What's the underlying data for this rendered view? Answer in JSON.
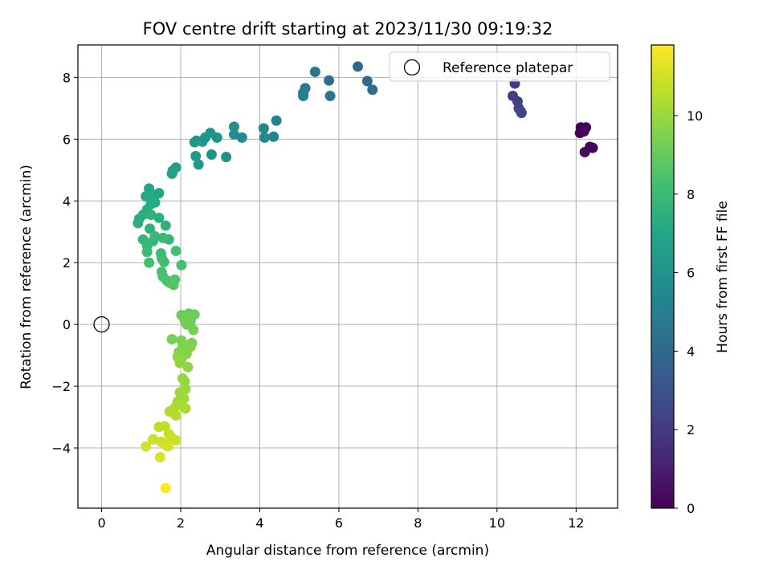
{
  "chart_data": {
    "type": "scatter",
    "title": "FOV centre drift starting at 2023/11/30 09:19:32",
    "xlabel": "Angular distance from reference (arcmin)",
    "ylabel": "Rotation from reference (arcmin)",
    "xlim": [
      -0.6,
      13.05
    ],
    "ylim": [
      -5.95,
      9.05
    ],
    "xticks": [
      0,
      2,
      4,
      6,
      8,
      10,
      12
    ],
    "yticks": [
      -4,
      -2,
      0,
      2,
      4,
      6,
      8
    ],
    "grid": true,
    "legend": {
      "position": "top-right",
      "entries": [
        "Reference platepar"
      ]
    },
    "colorbar": {
      "label": "Hours from first FF file",
      "range": [
        0,
        11.8
      ],
      "ticks": [
        0,
        2,
        4,
        6,
        8,
        10
      ],
      "colormap": "viridis"
    },
    "reference_point": {
      "x": 0,
      "y": 0,
      "label": "Reference platepar"
    },
    "points": [
      {
        "x": 12.12,
        "y": 6.38,
        "c": 0.0
      },
      {
        "x": 12.25,
        "y": 6.38,
        "c": 0.05
      },
      {
        "x": 12.1,
        "y": 6.2,
        "c": 0.1
      },
      {
        "x": 12.2,
        "y": 6.25,
        "c": 0.15
      },
      {
        "x": 12.35,
        "y": 5.75,
        "c": 0.2
      },
      {
        "x": 12.42,
        "y": 5.72,
        "c": 0.25
      },
      {
        "x": 12.22,
        "y": 5.58,
        "c": 0.3
      },
      {
        "x": 10.45,
        "y": 7.8,
        "c": 2.0
      },
      {
        "x": 10.4,
        "y": 7.4,
        "c": 2.1
      },
      {
        "x": 10.52,
        "y": 7.22,
        "c": 2.2
      },
      {
        "x": 10.55,
        "y": 7.0,
        "c": 2.3
      },
      {
        "x": 10.6,
        "y": 6.9,
        "c": 2.4
      },
      {
        "x": 10.62,
        "y": 6.85,
        "c": 2.5
      },
      {
        "x": 6.48,
        "y": 8.35,
        "c": 4.0
      },
      {
        "x": 6.72,
        "y": 7.88,
        "c": 4.1
      },
      {
        "x": 6.85,
        "y": 7.6,
        "c": 4.2
      },
      {
        "x": 5.75,
        "y": 7.9,
        "c": 4.4
      },
      {
        "x": 5.78,
        "y": 7.4,
        "c": 4.5
      },
      {
        "x": 5.4,
        "y": 8.18,
        "c": 4.6
      },
      {
        "x": 5.15,
        "y": 7.65,
        "c": 4.8
      },
      {
        "x": 5.1,
        "y": 7.4,
        "c": 4.9
      },
      {
        "x": 5.1,
        "y": 7.5,
        "c": 5.0
      },
      {
        "x": 4.42,
        "y": 6.6,
        "c": 5.2
      },
      {
        "x": 4.35,
        "y": 6.08,
        "c": 5.3
      },
      {
        "x": 4.1,
        "y": 6.35,
        "c": 5.4
      },
      {
        "x": 4.12,
        "y": 6.05,
        "c": 5.5
      },
      {
        "x": 3.55,
        "y": 6.05,
        "c": 5.6
      },
      {
        "x": 3.35,
        "y": 6.4,
        "c": 5.7
      },
      {
        "x": 3.35,
        "y": 6.15,
        "c": 5.8
      },
      {
        "x": 3.15,
        "y": 5.42,
        "c": 5.9
      },
      {
        "x": 2.92,
        "y": 6.05,
        "c": 6.0
      },
      {
        "x": 2.75,
        "y": 6.2,
        "c": 6.05
      },
      {
        "x": 2.78,
        "y": 5.5,
        "c": 6.1
      },
      {
        "x": 2.62,
        "y": 6.05,
        "c": 6.15
      },
      {
        "x": 2.55,
        "y": 5.92,
        "c": 6.2
      },
      {
        "x": 2.4,
        "y": 5.95,
        "c": 6.25
      },
      {
        "x": 2.35,
        "y": 5.9,
        "c": 6.3
      },
      {
        "x": 2.38,
        "y": 5.45,
        "c": 6.35
      },
      {
        "x": 2.45,
        "y": 5.18,
        "c": 6.4
      },
      {
        "x": 1.88,
        "y": 5.08,
        "c": 6.6
      },
      {
        "x": 1.8,
        "y": 4.98,
        "c": 6.65
      },
      {
        "x": 1.78,
        "y": 4.88,
        "c": 6.7
      },
      {
        "x": 1.2,
        "y": 4.4,
        "c": 7.0
      },
      {
        "x": 1.45,
        "y": 4.25,
        "c": 7.05
      },
      {
        "x": 1.12,
        "y": 4.15,
        "c": 7.1
      },
      {
        "x": 1.3,
        "y": 4.2,
        "c": 7.15
      },
      {
        "x": 1.35,
        "y": 3.95,
        "c": 7.2
      },
      {
        "x": 1.25,
        "y": 3.9,
        "c": 7.25
      },
      {
        "x": 1.15,
        "y": 3.72,
        "c": 7.3
      },
      {
        "x": 1.05,
        "y": 3.55,
        "c": 7.35
      },
      {
        "x": 0.95,
        "y": 3.42,
        "c": 7.4
      },
      {
        "x": 0.92,
        "y": 3.28,
        "c": 7.45
      },
      {
        "x": 1.45,
        "y": 3.45,
        "c": 7.5
      },
      {
        "x": 1.25,
        "y": 3.55,
        "c": 7.55
      },
      {
        "x": 1.62,
        "y": 3.2,
        "c": 7.6
      },
      {
        "x": 1.22,
        "y": 3.1,
        "c": 7.65
      },
      {
        "x": 1.7,
        "y": 2.75,
        "c": 7.7
      },
      {
        "x": 1.3,
        "y": 2.7,
        "c": 7.75
      },
      {
        "x": 1.05,
        "y": 2.75,
        "c": 7.8
      },
      {
        "x": 1.15,
        "y": 2.55,
        "c": 7.85
      },
      {
        "x": 1.35,
        "y": 2.85,
        "c": 7.9
      },
      {
        "x": 1.55,
        "y": 2.8,
        "c": 7.95
      },
      {
        "x": 1.15,
        "y": 2.35,
        "c": 8.0
      },
      {
        "x": 1.5,
        "y": 2.3,
        "c": 8.05
      },
      {
        "x": 1.52,
        "y": 2.15,
        "c": 8.1
      },
      {
        "x": 1.58,
        "y": 2.02,
        "c": 8.15
      },
      {
        "x": 1.2,
        "y": 2.0,
        "c": 8.2
      },
      {
        "x": 1.88,
        "y": 2.38,
        "c": 8.25
      },
      {
        "x": 2.02,
        "y": 1.92,
        "c": 8.3
      },
      {
        "x": 1.52,
        "y": 1.7,
        "c": 8.35
      },
      {
        "x": 1.55,
        "y": 1.55,
        "c": 8.4
      },
      {
        "x": 1.65,
        "y": 1.42,
        "c": 8.45
      },
      {
        "x": 1.72,
        "y": 1.35,
        "c": 8.5
      },
      {
        "x": 1.85,
        "y": 1.45,
        "c": 8.55
      },
      {
        "x": 1.82,
        "y": 1.28,
        "c": 8.6
      },
      {
        "x": 2.02,
        "y": 0.3,
        "c": 9.0
      },
      {
        "x": 2.2,
        "y": 0.35,
        "c": 9.05
      },
      {
        "x": 2.35,
        "y": 0.32,
        "c": 9.1
      },
      {
        "x": 2.1,
        "y": 0.15,
        "c": 9.15
      },
      {
        "x": 2.25,
        "y": 0.1,
        "c": 9.2
      },
      {
        "x": 2.15,
        "y": 0.0,
        "c": 9.25
      },
      {
        "x": 2.32,
        "y": -0.18,
        "c": 9.3
      },
      {
        "x": 1.78,
        "y": -0.48,
        "c": 9.35
      },
      {
        "x": 2.02,
        "y": -0.52,
        "c": 9.4
      },
      {
        "x": 2.28,
        "y": -0.6,
        "c": 9.45
      },
      {
        "x": 2.05,
        "y": -0.7,
        "c": 9.5
      },
      {
        "x": 2.25,
        "y": -0.72,
        "c": 9.55
      },
      {
        "x": 1.95,
        "y": -0.9,
        "c": 9.6
      },
      {
        "x": 2.15,
        "y": -0.95,
        "c": 9.65
      },
      {
        "x": 1.92,
        "y": -1.05,
        "c": 9.7
      },
      {
        "x": 2.02,
        "y": -1.12,
        "c": 9.75
      },
      {
        "x": 2.18,
        "y": -1.38,
        "c": 9.8
      },
      {
        "x": 1.98,
        "y": -1.25,
        "c": 9.85
      },
      {
        "x": 2.05,
        "y": -1.75,
        "c": 9.9
      },
      {
        "x": 2.1,
        "y": -1.85,
        "c": 9.95
      },
      {
        "x": 2.12,
        "y": -2.1,
        "c": 10.0
      },
      {
        "x": 1.98,
        "y": -2.2,
        "c": 10.05
      },
      {
        "x": 2.08,
        "y": -2.4,
        "c": 10.1
      },
      {
        "x": 1.92,
        "y": -2.5,
        "c": 10.15
      },
      {
        "x": 2.0,
        "y": -2.6,
        "c": 10.2
      },
      {
        "x": 2.12,
        "y": -2.72,
        "c": 10.25
      },
      {
        "x": 1.85,
        "y": -2.7,
        "c": 10.3
      },
      {
        "x": 1.8,
        "y": -2.85,
        "c": 10.35
      },
      {
        "x": 1.72,
        "y": -2.82,
        "c": 10.4
      },
      {
        "x": 1.88,
        "y": -2.95,
        "c": 10.45
      },
      {
        "x": 1.6,
        "y": -3.3,
        "c": 10.6
      },
      {
        "x": 1.45,
        "y": -3.32,
        "c": 10.65
      },
      {
        "x": 1.7,
        "y": -3.55,
        "c": 10.7
      },
      {
        "x": 1.75,
        "y": -3.65,
        "c": 10.75
      },
      {
        "x": 1.3,
        "y": -3.72,
        "c": 10.8
      },
      {
        "x": 1.88,
        "y": -3.75,
        "c": 10.85
      },
      {
        "x": 1.5,
        "y": -3.8,
        "c": 10.9
      },
      {
        "x": 1.62,
        "y": -3.9,
        "c": 10.95
      },
      {
        "x": 1.12,
        "y": -3.95,
        "c": 11.0
      },
      {
        "x": 1.68,
        "y": -3.95,
        "c": 11.1
      },
      {
        "x": 1.48,
        "y": -4.3,
        "c": 11.2
      },
      {
        "x": 1.62,
        "y": -5.3,
        "c": 11.8
      }
    ]
  }
}
